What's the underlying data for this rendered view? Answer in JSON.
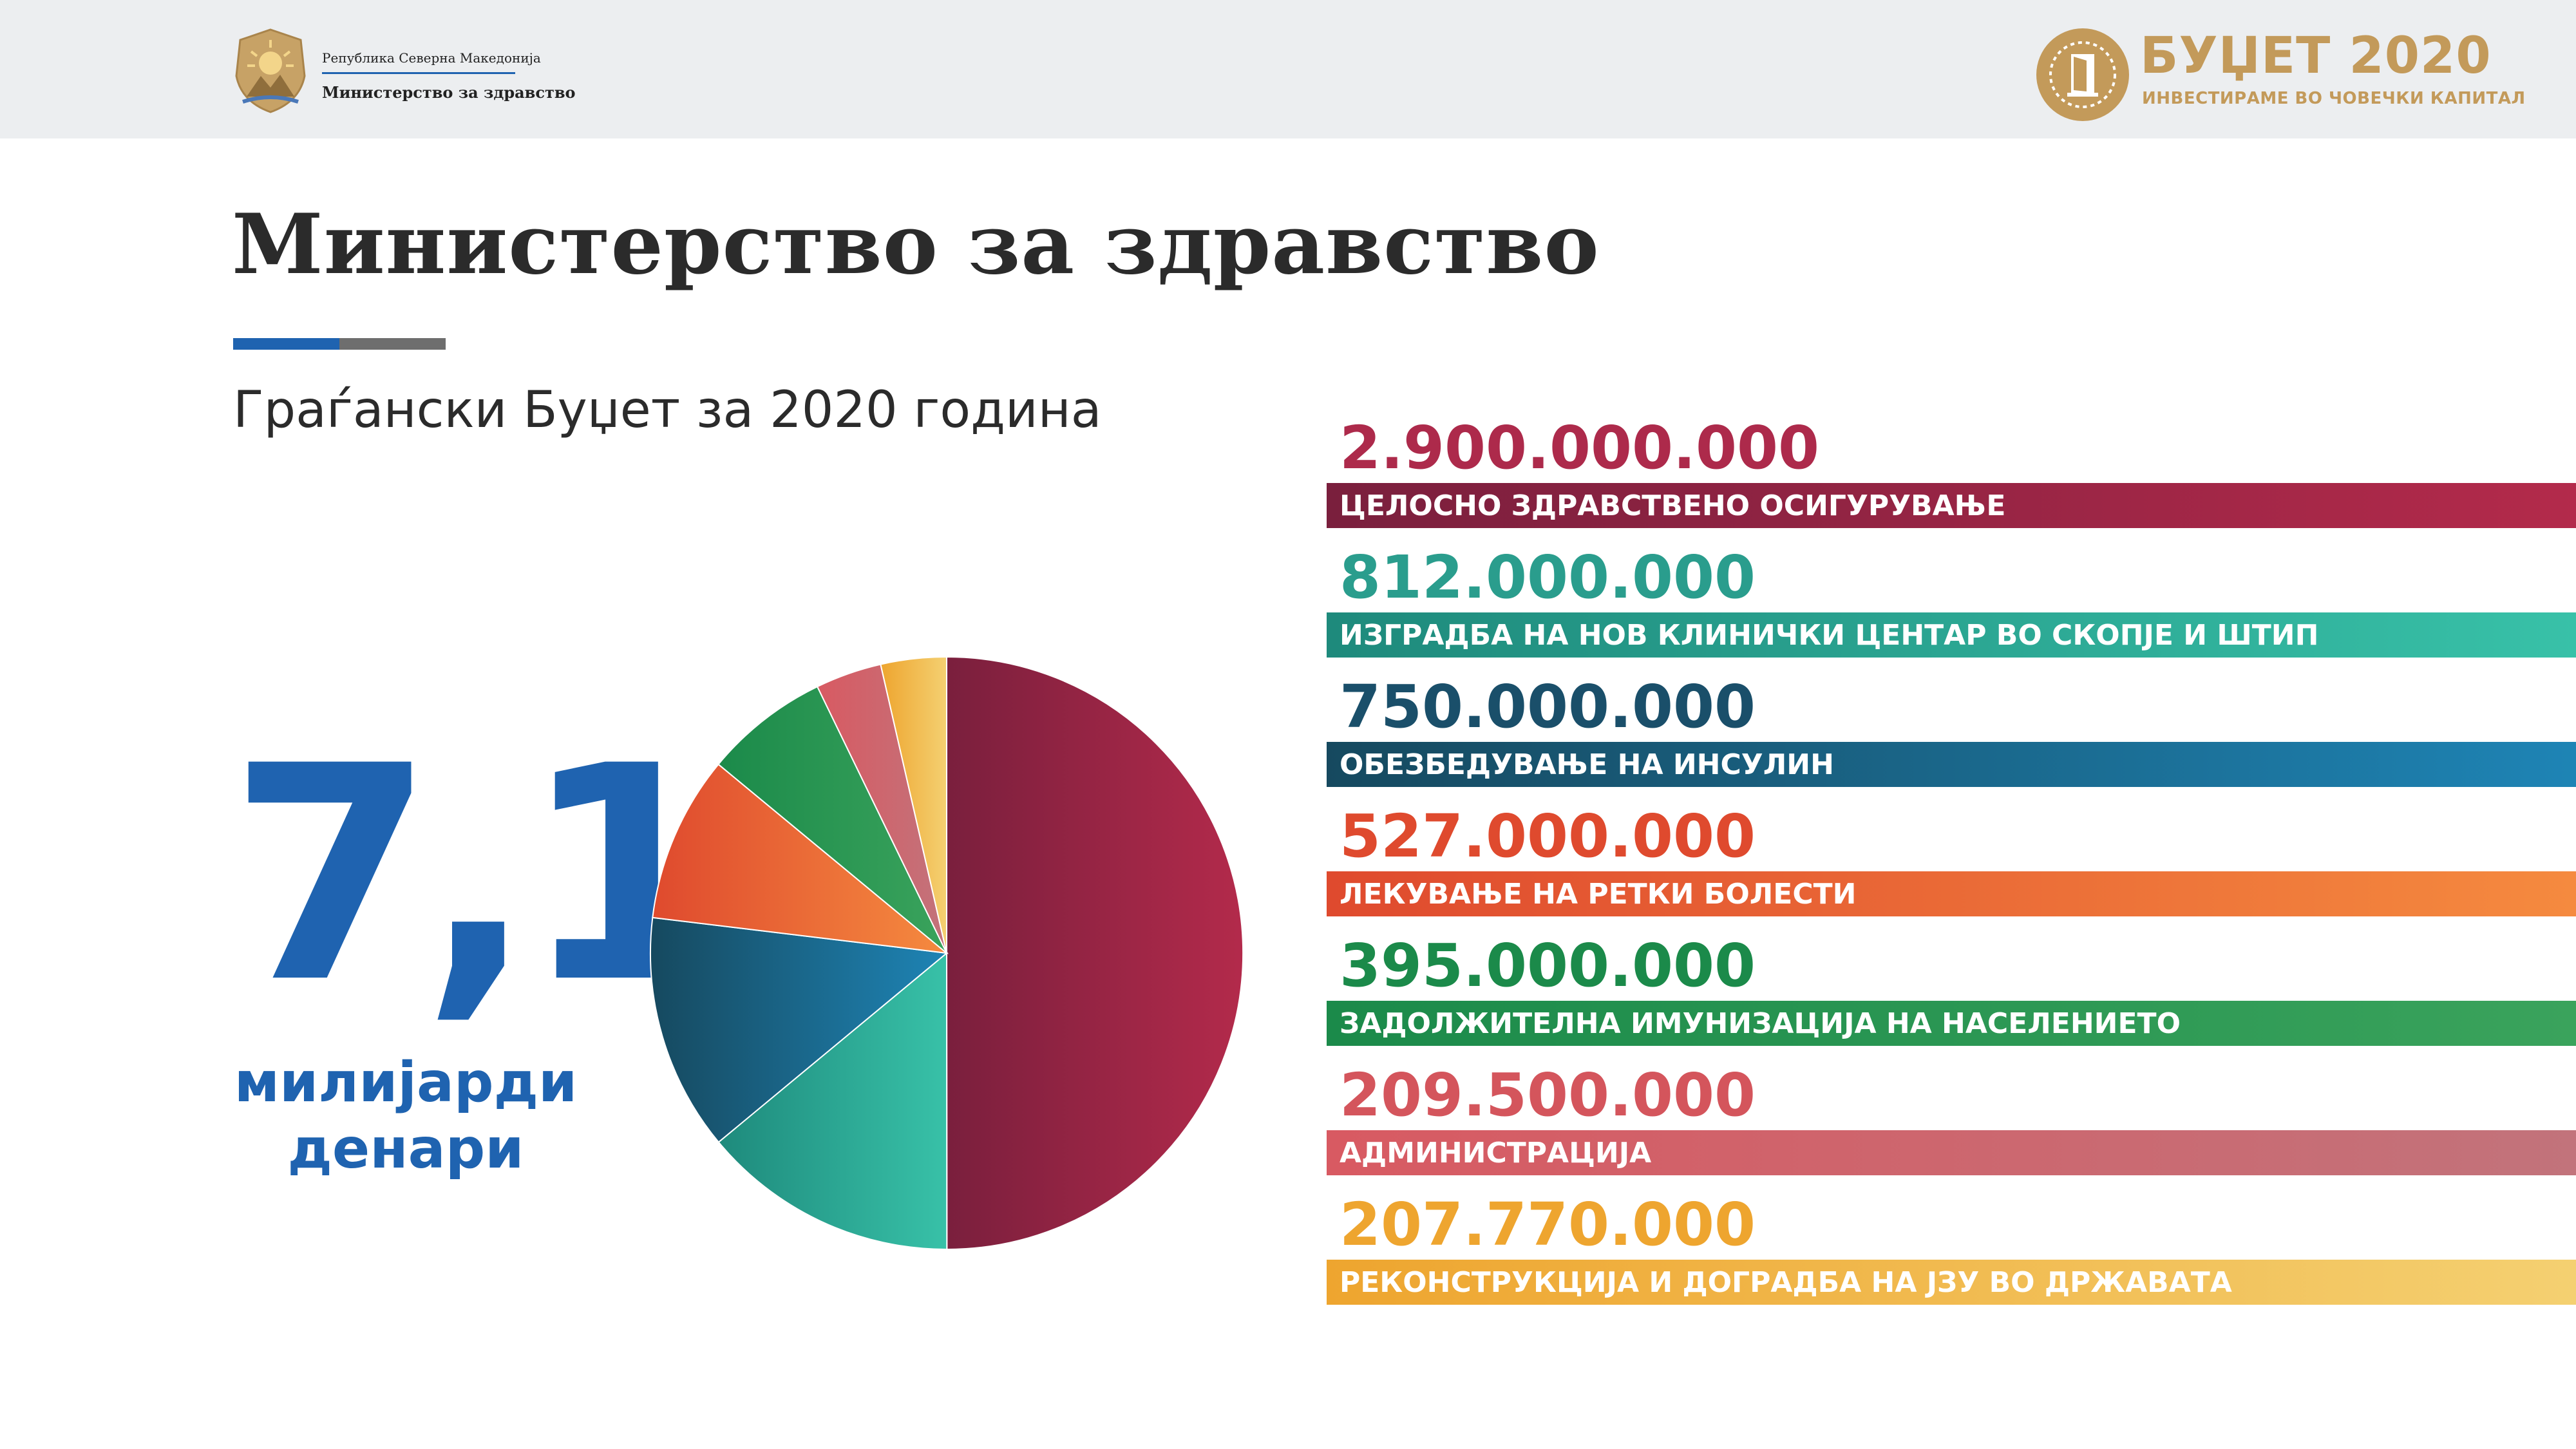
{
  "header": {
    "gov_line1": "Република Северна Македонија",
    "gov_line2": "Министерство за здравство",
    "emblem_icon": "coat-of-arms-emblem",
    "brand_icon": "door-sun-logo",
    "brand_title": "БУЏЕТ 2020",
    "brand_subtitle": "ИНВЕСТИРАМЕ ВО ЧОВЕЧКИ КАПИТАЛ"
  },
  "main": {
    "title": "Министерство за здравство",
    "subtitle": "Граѓански Буџет за 2020 година",
    "total_value": "7,1",
    "total_unit_line1": "милијарди",
    "total_unit_line2": "денари"
  },
  "colors": {
    "primary_blue": "#1f63b0",
    "brand_gold": "#c39a5a"
  },
  "chart_data": {
    "type": "pie",
    "title": "",
    "slices": [
      {
        "label": "ЦЕЛОСНО ЗДРАВСТВЕНО ОСИГУРУВАЊЕ",
        "value_text": "2.900.000.000",
        "value": 2900000000,
        "color_start": "#7a1f3d",
        "color_end": "#b32a4b",
        "text_color": "#ad2a4b"
      },
      {
        "label": "ИЗГРАДБА НА НОВ КЛИНИЧКИ ЦЕНТАР ВО СКОПЈЕ И ШТИП",
        "value_text": "812.000.000",
        "value": 812000000,
        "color_start": "#1e8a7c",
        "color_end": "#38c1a8",
        "text_color": "#2a9d8d"
      },
      {
        "label": "ОБЕЗБЕДУВАЊЕ НА ИНСУЛИН",
        "value_text": "750.000.000",
        "value": 750000000,
        "color_start": "#16495f",
        "color_end": "#1e84b5",
        "text_color": "#1a4f6a"
      },
      {
        "label": "ЛЕКУВАЊЕ НА РЕТКИ БОЛЕСТИ",
        "value_text": "527.000.000",
        "value": 527000000,
        "color_start": "#df4a2e",
        "color_end": "#f58a3f",
        "text_color": "#df4a2e"
      },
      {
        "label": "ЗАДОЛЖИТЕЛНА ИМУНИЗАЦИЈА НА НАСЕЛЕНИЕТО",
        "value_text": "395.000.000",
        "value": 395000000,
        "color_start": "#1b8a4a",
        "color_end": "#3aa35c",
        "text_color": "#1b8a4a"
      },
      {
        "label": "АДМИНИСТРАЦИЈА",
        "value_text": "209.500.000",
        "value": 209500000,
        "color_start": "#d85a62",
        "color_end": "#c2737b",
        "text_color": "#d4555c"
      },
      {
        "label": "РЕКОНСТРУКЦИЈА И ДОГРАДБА НА ЈЗУ ВО ДРЖАВАТА",
        "value_text": "207.770.000",
        "value": 207770000,
        "color_start": "#eea52f",
        "color_end": "#f4d071",
        "text_color": "#eea52f"
      }
    ]
  }
}
